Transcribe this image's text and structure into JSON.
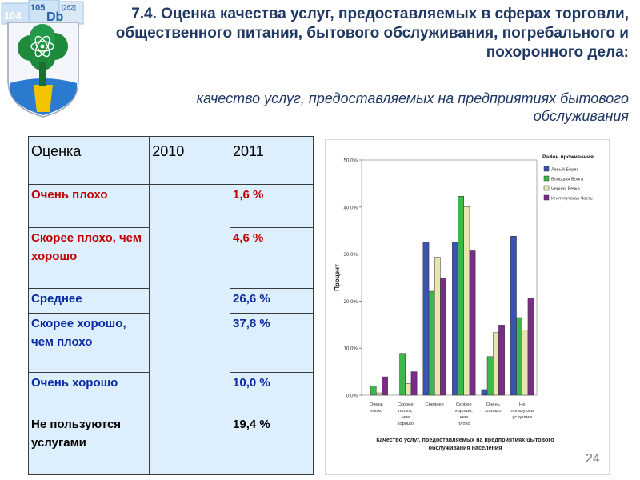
{
  "slide": {
    "title": "7.4. Оценка качества услуг, предоставляемых в сферах торговли, общественного питания, бытового обслуживания, погребального и похоронного дела:",
    "subtitle": "качество услуг, предоставляемых на предприятиях бытового обслуживания",
    "page_number": "24"
  },
  "logo": {
    "tiles": [
      "104",
      "105",
      "Db",
      "[262]"
    ]
  },
  "table": {
    "headers": [
      "Оценка",
      "2010",
      "2011"
    ],
    "rows": [
      {
        "label": "Очень плохо",
        "y2010": "",
        "y2011": "1,6 %",
        "color": "#c00000"
      },
      {
        "label": "Скорее плохо, чем хорошо",
        "y2010": "",
        "y2011": "4,6 %",
        "color": "#c00000"
      },
      {
        "label": "Среднее",
        "y2010": "",
        "y2011": "26,6 %",
        "color": "#0a2aa0"
      },
      {
        "label": "Скорее хорошо, чем плохо",
        "y2010": "",
        "y2011": "37,8 %",
        "color": "#0a2aa0"
      },
      {
        "label": "Очень хорошо",
        "y2010": "",
        "y2011": "10,0 %",
        "color": "#0a2aa0"
      },
      {
        "label": "Не пользуются услугами",
        "y2010": "",
        "y2011": "19,4 %",
        "color": "#000000"
      }
    ]
  },
  "chart_data": {
    "type": "bar",
    "xlabel": "Качество услуг, предоставляемых на предприятиях бытового обслуживания населения",
    "ylabel": "Процент",
    "ylim": [
      0,
      50
    ],
    "yticks": [
      "0,0%",
      "10,0%",
      "20,0%",
      "30,0%",
      "40,0%",
      "50,0%"
    ],
    "categories": [
      "Очень плохо",
      "Скорее плохо, чем хорошо",
      "Среднее",
      "Скорее хорошо, чем плохо",
      "Очень хорошо",
      "Не пользуюсь услугами"
    ],
    "legend_title": "Район проживания",
    "legend_position": "top-right",
    "series": [
      {
        "name": "Левый Берег",
        "color": "#3a53b0",
        "values": [
          0.0,
          0.0,
          32.6,
          32.6,
          1.2,
          33.8
        ]
      },
      {
        "name": "Большая Волга",
        "color": "#3cb84a",
        "values": [
          1.9,
          8.9,
          22.1,
          42.3,
          8.2,
          16.5
        ]
      },
      {
        "name": "Черная Речка",
        "color": "#e8e6b0",
        "values": [
          0.5,
          2.5,
          29.3,
          40.1,
          13.3,
          13.9
        ]
      },
      {
        "name": "Институтская Часть",
        "color": "#7a2d86",
        "values": [
          3.9,
          5.0,
          24.9,
          30.7,
          14.9,
          20.7
        ]
      }
    ]
  }
}
